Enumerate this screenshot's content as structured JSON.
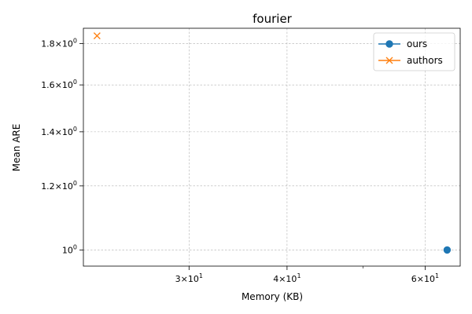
{
  "chart_data": {
    "type": "scatter",
    "title": "fourier",
    "xlabel": "Memory (KB)",
    "ylabel": "Mean ARE",
    "xscale": "log",
    "yscale": "log",
    "xlim": [
      22.0,
      66.5
    ],
    "ylim": [
      0.955,
      1.88
    ],
    "grid": true,
    "legend_position": "top-right",
    "x_ticks": [
      {
        "value": 30,
        "label_base": "3",
        "label_sup": "1"
      },
      {
        "value": 40,
        "label_base": "4",
        "label_sup": "1"
      },
      {
        "value": 60,
        "label_base": "6",
        "label_sup": "1"
      }
    ],
    "x_minor_ticks": [
      50
    ],
    "y_ticks": [
      {
        "value": 1.0,
        "label_base": "10",
        "label_sup": "0"
      },
      {
        "value": 1.2,
        "label_base": "1.2",
        "label_sup": "0"
      },
      {
        "value": 1.4,
        "label_base": "1.4",
        "label_sup": "0"
      },
      {
        "value": 1.6,
        "label_base": "1.6",
        "label_sup": "0"
      },
      {
        "value": 1.8,
        "label_base": "1.8",
        "label_sup": "0"
      }
    ],
    "series": [
      {
        "name": "ours",
        "color": "#1f77b4",
        "marker": "circle",
        "points": [
          {
            "x": 64.0,
            "y": 1.0
          }
        ]
      },
      {
        "name": "authors",
        "color": "#ff7f0e",
        "marker": "x",
        "points": [
          {
            "x": 22.9,
            "y": 1.84
          }
        ]
      }
    ]
  }
}
